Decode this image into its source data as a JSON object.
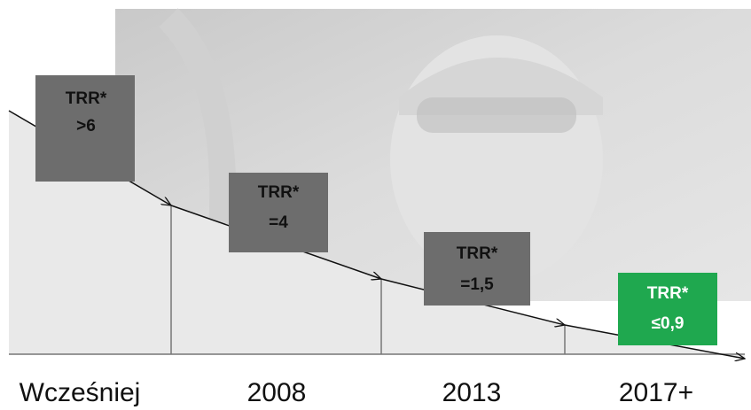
{
  "steps": [
    {
      "label": "TRR*",
      "value": ">6",
      "period": "Wcześniej"
    },
    {
      "label": "TRR*",
      "value": "=4",
      "period": "2008"
    },
    {
      "label": "TRR*",
      "value": "=1,5",
      "period": "2013"
    },
    {
      "label": "TRR*",
      "value": "≤0,9",
      "period": "2017+"
    }
  ]
}
